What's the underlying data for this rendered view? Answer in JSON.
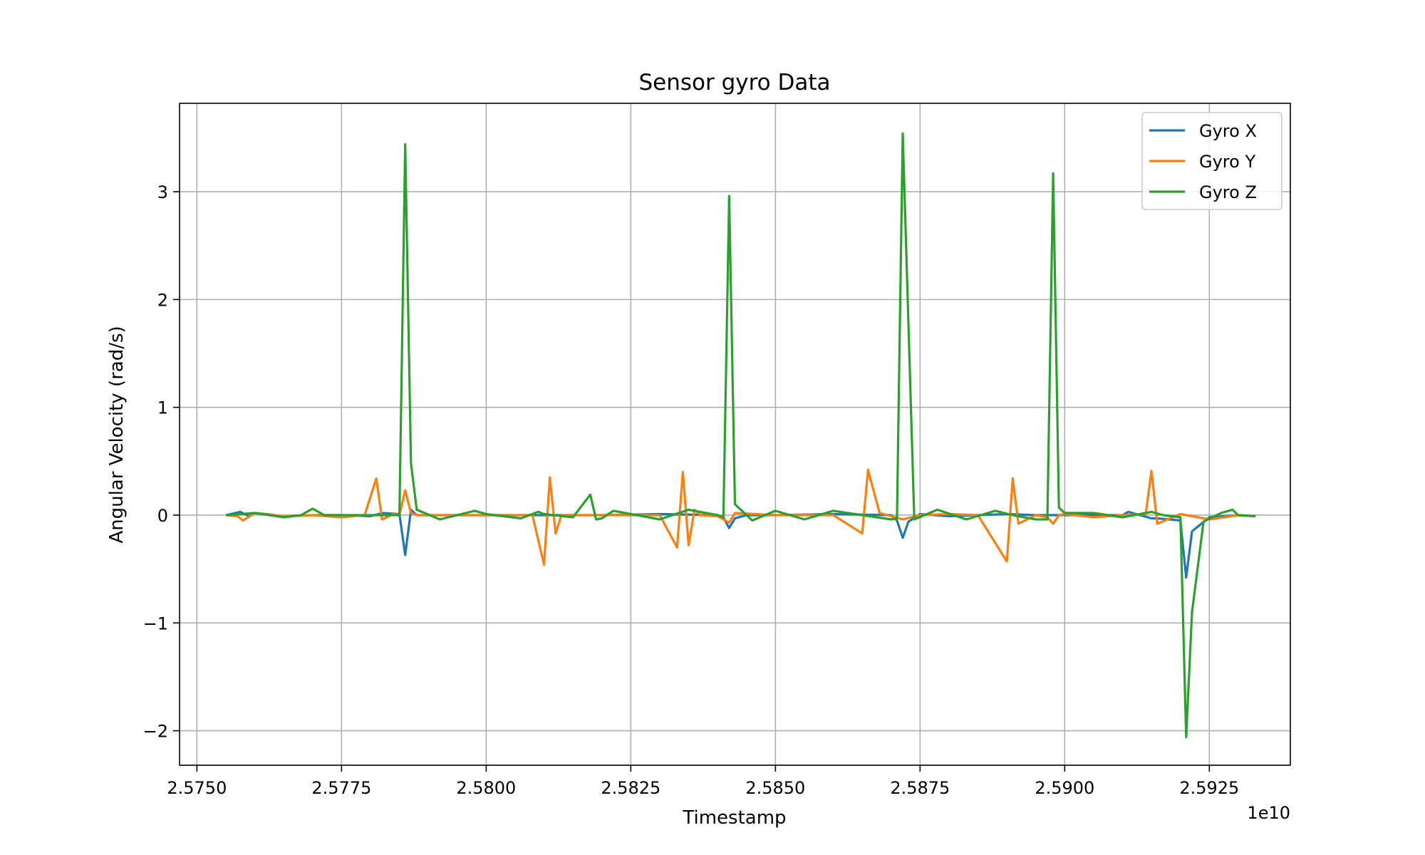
{
  "chart_data": {
    "type": "line",
    "title": "Sensor gyro Data",
    "xlabel": "Timestamp",
    "ylabel": "Angular Velocity (rad/s)",
    "x_offset_label": "1e10",
    "xlim": [
      2.5747,
      2.5939
    ],
    "ylim": [
      -2.32,
      3.82
    ],
    "xticks": [
      2.575,
      2.5775,
      2.58,
      2.5825,
      2.585,
      2.5875,
      2.59,
      2.5925
    ],
    "xtick_labels": [
      "2.5750",
      "2.5775",
      "2.5800",
      "2.5825",
      "2.5850",
      "2.5875",
      "2.5900",
      "2.5925"
    ],
    "yticks": [
      -2,
      -1,
      0,
      1,
      2,
      3
    ],
    "ytick_labels": [
      "−2",
      "−1",
      "0",
      "1",
      "2",
      "3"
    ],
    "grid": true,
    "legend_position": "top-right",
    "series": [
      {
        "name": "Gyro X",
        "color": "#1f77b4",
        "x": [
          2.5755,
          2.57575,
          2.5759,
          2.576,
          2.5762,
          2.5765,
          2.577,
          2.5775,
          2.578,
          2.5782,
          2.5785,
          2.5786,
          2.5787,
          2.5788,
          2.579,
          2.5795,
          2.58,
          2.581,
          2.582,
          2.583,
          2.584,
          2.5841,
          2.5842,
          2.5843,
          2.5845,
          2.585,
          2.586,
          2.587,
          2.5871,
          2.5872,
          2.5873,
          2.5875,
          2.588,
          2.5885,
          2.589,
          2.5895,
          2.59,
          2.591,
          2.5911,
          2.5913,
          2.5915,
          2.5916,
          2.592,
          2.5921,
          2.5922,
          2.5925,
          2.593,
          2.5933
        ],
        "y": [
          0.0,
          0.03,
          -0.01,
          0.02,
          0.01,
          -0.01,
          0.0,
          0.0,
          -0.01,
          0.02,
          0.01,
          -0.37,
          0.05,
          0.0,
          0.0,
          0.0,
          0.0,
          0.0,
          0.0,
          0.01,
          0.0,
          -0.02,
          -0.12,
          -0.03,
          0.0,
          0.0,
          0.01,
          0.0,
          -0.05,
          -0.21,
          -0.06,
          0.01,
          -0.01,
          0.0,
          0.01,
          0.0,
          0.0,
          0.0,
          0.03,
          0.0,
          -0.03,
          -0.03,
          -0.05,
          -0.58,
          -0.15,
          -0.02,
          0.0,
          -0.01
        ]
      },
      {
        "name": "Gyro Y",
        "color": "#ff7f0e",
        "x": [
          2.5755,
          2.5757,
          2.5758,
          2.576,
          2.5765,
          2.577,
          2.5775,
          2.5779,
          2.5781,
          2.5782,
          2.5784,
          2.5785,
          2.5786,
          2.5787,
          2.5788,
          2.5795,
          2.58,
          2.5808,
          2.581,
          2.5811,
          2.5812,
          2.5813,
          2.582,
          2.583,
          2.5833,
          2.5834,
          2.5835,
          2.5836,
          2.5837,
          2.584,
          2.5842,
          2.5843,
          2.585,
          2.586,
          2.5865,
          2.5866,
          2.5868,
          2.5872,
          2.5875,
          2.588,
          2.5885,
          2.589,
          2.5891,
          2.5892,
          2.5895,
          2.5897,
          2.5898,
          2.5899,
          2.59,
          2.5905,
          2.591,
          2.5914,
          2.5915,
          2.5916,
          2.592,
          2.5925,
          2.593,
          2.5933
        ],
        "y": [
          0.0,
          -0.01,
          -0.05,
          0.02,
          -0.01,
          0.0,
          -0.02,
          0.0,
          0.34,
          -0.04,
          0.01,
          0.0,
          0.23,
          0.02,
          0.0,
          0.0,
          0.0,
          0.0,
          -0.46,
          0.35,
          -0.17,
          0.0,
          0.0,
          0.0,
          -0.3,
          0.4,
          -0.28,
          0.05,
          0.0,
          -0.01,
          -0.07,
          0.02,
          0.0,
          0.0,
          -0.17,
          0.42,
          0.02,
          -0.04,
          0.0,
          0.01,
          0.0,
          -0.43,
          0.34,
          -0.08,
          0.0,
          -0.02,
          -0.08,
          0.0,
          0.01,
          -0.02,
          0.0,
          0.01,
          0.41,
          -0.08,
          0.01,
          -0.04,
          0.0,
          -0.01
        ]
      },
      {
        "name": "Gyro Z",
        "color": "#2ca02c",
        "x": [
          2.5755,
          2.576,
          2.5765,
          2.5768,
          2.577,
          2.5772,
          2.5775,
          2.578,
          2.5784,
          2.5785,
          2.5786,
          2.5787,
          2.5788,
          2.5792,
          2.5798,
          2.58,
          2.5806,
          2.5809,
          2.581,
          2.5815,
          2.5818,
          2.5819,
          2.582,
          2.5822,
          2.5825,
          2.583,
          2.5835,
          2.584,
          2.5841,
          2.5842,
          2.5843,
          2.5846,
          2.585,
          2.5855,
          2.586,
          2.5865,
          2.587,
          2.5871,
          2.5872,
          2.5874,
          2.5878,
          2.5883,
          2.5888,
          2.5891,
          2.5895,
          2.5897,
          2.5898,
          2.5899,
          2.59,
          2.5905,
          2.591,
          2.5915,
          2.5917,
          2.592,
          2.5921,
          2.5922,
          2.5924,
          2.5927,
          2.5929,
          2.593,
          2.5933
        ],
        "y": [
          0.0,
          0.02,
          -0.02,
          0.0,
          0.06,
          0.0,
          0.0,
          0.0,
          0.0,
          0.0,
          3.44,
          0.48,
          0.05,
          -0.04,
          0.04,
          0.01,
          -0.03,
          0.03,
          0.01,
          -0.02,
          0.19,
          -0.04,
          -0.03,
          0.04,
          0.01,
          -0.04,
          0.05,
          0.0,
          -0.02,
          2.96,
          0.1,
          -0.05,
          0.04,
          -0.04,
          0.04,
          0.0,
          -0.04,
          -0.03,
          3.54,
          -0.04,
          0.05,
          -0.04,
          0.04,
          0.0,
          -0.04,
          -0.04,
          3.17,
          0.07,
          0.02,
          0.02,
          -0.02,
          0.03,
          0.0,
          -0.02,
          -2.06,
          -0.9,
          -0.06,
          0.02,
          0.05,
          0.0,
          -0.01
        ]
      }
    ]
  }
}
